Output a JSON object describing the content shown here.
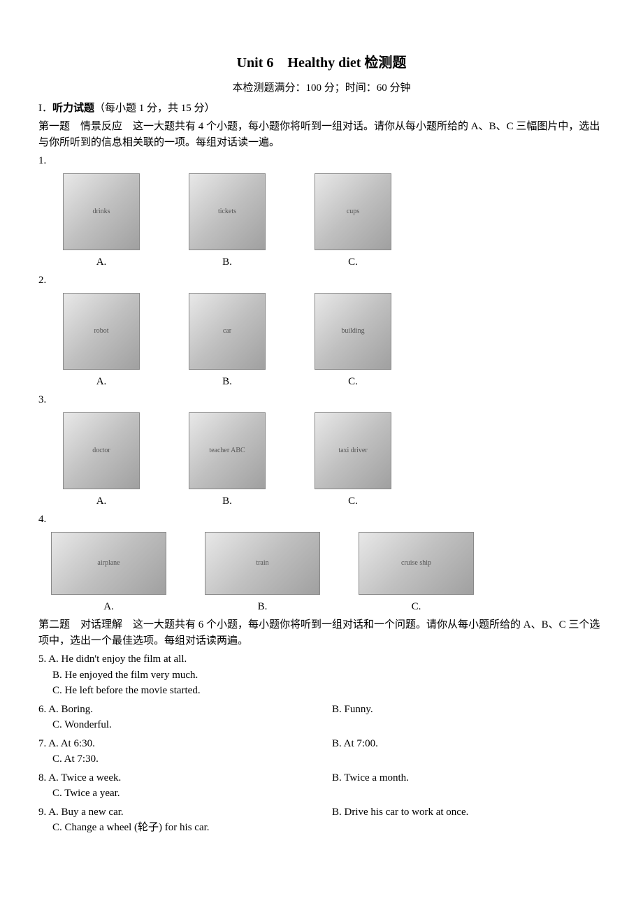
{
  "title": "Unit 6　Healthy diet 检测题",
  "subtitle": "本检测题满分：100 分；时间：60 分钟",
  "section1": {
    "header_roman": "I．",
    "header_bold": "听力试题",
    "header_rest": "（每小题 1 分，共 15 分）",
    "part1_intro": "第一题　情景反应　这一大题共有 4 个小题，每小题你将听到一组对话。请你从每小题所给的 A、B、C 三幅图片中，选出与你所听到的信息相关联的一项。每组对话读一遍。"
  },
  "image_questions": [
    {
      "num": "1.",
      "images": [
        {
          "label": "A.",
          "alt": "drinks"
        },
        {
          "label": "B.",
          "alt": "tickets"
        },
        {
          "label": "C.",
          "alt": "cups"
        }
      ]
    },
    {
      "num": "2.",
      "images": [
        {
          "label": "A.",
          "alt": "robot"
        },
        {
          "label": "B.",
          "alt": "car"
        },
        {
          "label": "C.",
          "alt": "building"
        }
      ]
    },
    {
      "num": "3.",
      "images": [
        {
          "label": "A.",
          "alt": "doctor"
        },
        {
          "label": "B.",
          "alt": "teacher ABC"
        },
        {
          "label": "C.",
          "alt": "taxi driver"
        }
      ]
    },
    {
      "num": "4.",
      "wide": true,
      "images": [
        {
          "label": "A.",
          "alt": "airplane"
        },
        {
          "label": "B.",
          "alt": "train"
        },
        {
          "label": "C.",
          "alt": "cruise ship"
        }
      ]
    }
  ],
  "part2_intro": "第二题　对话理解　这一大题共有 6 个小题，每小题你将听到一组对话和一个问题。请你从每小题所给的 A、B、C 三个选项中，选出一个最佳选项。每组对话读两遍。",
  "text_questions": [
    {
      "num": "5.",
      "layout": "stacked",
      "opts": [
        "A. He didn't enjoy the film at all.",
        "B. He enjoyed the film very much.",
        "C. He left before the movie started."
      ]
    },
    {
      "num": "6.",
      "layout": "two-col",
      "a": "A. Boring.",
      "b": "B. Funny.",
      "c": "C. Wonderful."
    },
    {
      "num": "7.",
      "layout": "two-col",
      "a": "A. At 6:30.",
      "b": "B. At 7:00.",
      "c": "C. At 7:30."
    },
    {
      "num": "8.",
      "layout": "two-col",
      "a": "A. Twice a week.",
      "b": "B. Twice a month.",
      "c": "C. Twice a year."
    },
    {
      "num": "9.",
      "layout": "two-col",
      "a": "A. Buy a new car.",
      "b": "B. Drive his car to work at once.",
      "c": "C. Change a wheel (轮子) for his car."
    }
  ],
  "colors": {
    "text": "#000000",
    "bg": "#ffffff",
    "placeholder_border": "#888888"
  }
}
